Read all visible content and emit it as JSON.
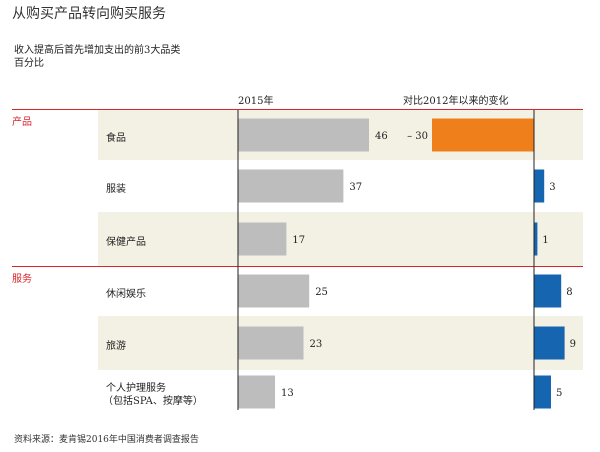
{
  "title": "从购买产品转向购买服务",
  "subtitle_line1": "收入提高后首先增加支出的前3大品类",
  "subtitle_line2": "百分比",
  "source": "资料来源：麦肯锡2016年中国消费者调查报告",
  "colors": {
    "gray_bar": "#bdbdbd",
    "orange": "#ef7f1a",
    "blue": "#1565b0",
    "red": "#d9252a",
    "shade": "#f3f0e4"
  },
  "chart_data": {
    "type": "bar",
    "groups": [
      {
        "name": "产品",
        "categories": [
          "食品",
          "服装",
          "保健产品"
        ]
      },
      {
        "name": "服务",
        "categories": [
          "休闲娱乐",
          "旅游",
          "个人护理服务（包括SPA、按摩等）"
        ]
      }
    ],
    "categories": [
      "食品",
      "服装",
      "保健产品",
      "休闲娱乐",
      "旅游",
      "个人护理服务（包括SPA、按摩等）"
    ],
    "category_lines": [
      [
        "食品"
      ],
      [
        "服装"
      ],
      [
        "保健产品"
      ],
      [
        "休闲娱乐"
      ],
      [
        "旅游"
      ],
      [
        "个人护理服务",
        "（包括SPA、按摩等）"
      ]
    ],
    "series": [
      {
        "name": "2015年",
        "values": [
          46,
          37,
          17,
          25,
          23,
          13
        ],
        "labels": [
          "46",
          "37",
          "17",
          "25",
          "23",
          "13"
        ]
      },
      {
        "name": "对比2012年以来的变化",
        "values": [
          -30,
          3,
          1,
          8,
          9,
          5
        ],
        "labels": [
          "– 30",
          "3",
          "1",
          "8",
          "9",
          "5"
        ]
      }
    ],
    "shaded_rows": [
      0,
      2,
      4
    ]
  }
}
